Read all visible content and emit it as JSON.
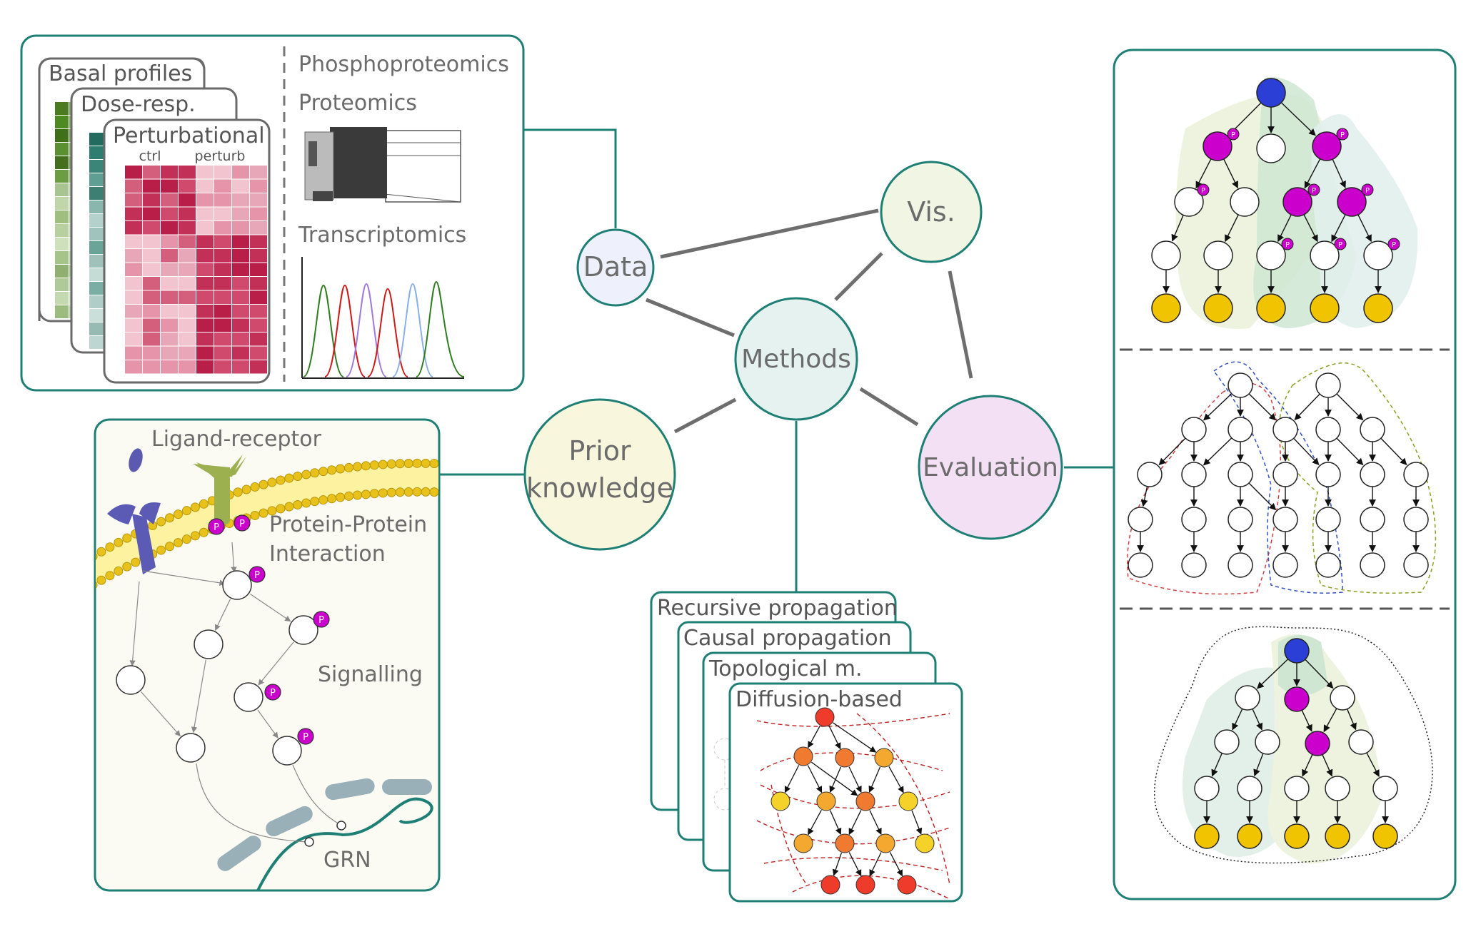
{
  "hub": {
    "data": "Data",
    "vis": "Vis.",
    "methods": "Methods",
    "prior_line1": "Prior",
    "prior_line2": "knowledge",
    "evaluation": "Evaluation"
  },
  "data_panel": {
    "cards": [
      "Basal profiles",
      "Dose-resp.",
      "Perturbational"
    ],
    "ctrl": "ctrl",
    "perturb": "perturb",
    "omics": [
      "Phosphoproteomics",
      "Proteomics",
      "Transcriptomics"
    ]
  },
  "prior_panel": {
    "ligand_receptor": "Ligand-receptor",
    "ppi_line1": "Protein-Protein",
    "ppi_line2": "Interaction",
    "signalling": "Signalling",
    "grn": "GRN",
    "phospho_badge": "P"
  },
  "methods_panel": {
    "cards": [
      "Recursive propagation",
      "Causal propagation",
      "Topological m.",
      "Diffusion-based"
    ]
  },
  "colors": {
    "frame": "#1e7f74",
    "data_fill": "#eef0fb",
    "vis_fill": "#f0f5e4",
    "methods_fill": "#e6f2ef",
    "prior_fill": "#f8f7dd",
    "eval_fill": "#f4e0f4",
    "phospho": "#cc00cc",
    "source_node": "#2b3fd6",
    "leaf_node": "#f0c400"
  }
}
